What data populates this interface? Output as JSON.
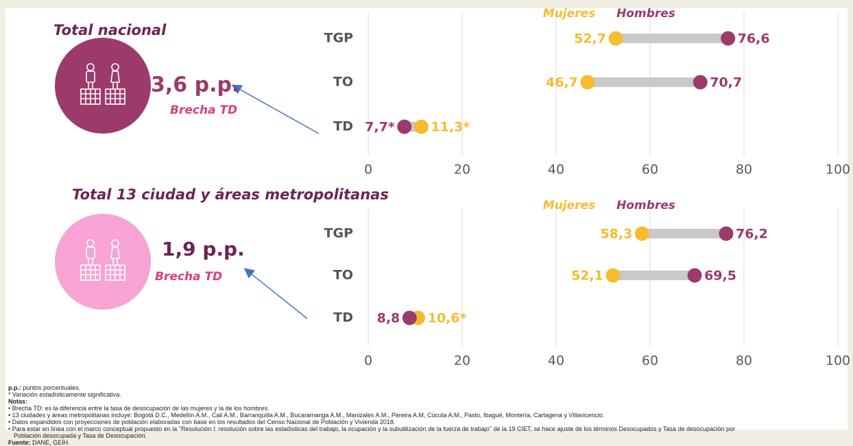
{
  "chart_data": [
    {
      "type": "dumbbell",
      "title": "Total nacional",
      "gap_label": "3,6 p.p.",
      "gap_caption": "Brecha TD",
      "categories": [
        "TGP",
        "TO",
        "TD"
      ],
      "series": [
        {
          "name": "Mujeres",
          "color": "#f5bc2f",
          "values": [
            52.7,
            46.7,
            11.3
          ],
          "value_labels": [
            "52,7",
            "46,7",
            "11,3*"
          ]
        },
        {
          "name": "Hombres",
          "color": "#9b3a6b",
          "values": [
            76.6,
            70.7,
            7.7
          ],
          "value_labels": [
            "76,6",
            "70,7",
            "7,7*"
          ]
        }
      ],
      "xlim": [
        0,
        100
      ],
      "xticks": [
        0,
        20,
        40,
        60,
        80,
        100
      ],
      "grid": true
    },
    {
      "type": "dumbbell",
      "title": "Total 13 ciudad y áreas metropolitanas",
      "gap_label": "1,9 p.p.",
      "gap_caption": "Brecha TD",
      "categories": [
        "TGP",
        "TO",
        "TD"
      ],
      "series": [
        {
          "name": "Mujeres",
          "color": "#f5bc2f",
          "values": [
            58.3,
            52.1,
            10.6
          ],
          "value_labels": [
            "58,3",
            "52,1",
            "10,6*"
          ]
        },
        {
          "name": "Hombres",
          "color": "#9b3a6b",
          "values": [
            76.2,
            69.5,
            8.8
          ],
          "value_labels": [
            "76,2",
            "69,5",
            "8,8"
          ]
        }
      ],
      "xlim": [
        0,
        100
      ],
      "xticks": [
        0,
        20,
        40,
        60,
        80,
        100
      ],
      "grid": true
    }
  ],
  "footnotes": {
    "pp_term": "p.p.:",
    "pp_text": "puntos porcentuales.",
    "significance": "* Variación estadísticamente significativa.",
    "notes_title": "Notas:",
    "notes": [
      "• Brecha TD: es la diferencia entre la tasa de desocupación de las mujeres y la de los hombres.",
      "• 13 ciudades y áreas metropolitanas incluye: Bogotá D.C., Medellín A.M., Cali A.M., Barranquilla A.M., Bucaramanga A.M., Manizales A.M., Pereira A.M, Cúcuta A.M., Pasto, Ibagué, Montería, Cartagena y Villavicencio.",
      "• Datos expandidos con proyecciones de población elaboradas con base en los resultados del Censo Nacional de Población y Vivienda 2018.",
      "• Para estar en línea con el marco conceptual propuesto en la \"Resolución I: resolución sobre las estadísticas del trabajo, la ocupación y la subutilización de la fuerza de trabajo\" de la 19 CIET, se hace ajuste de los términos Desocupados y Tasa de desocupación por Población desocupada y Tasa de Desocupación."
    ],
    "source_term": "Fuente:",
    "source_text": "DANE, GEIH."
  }
}
